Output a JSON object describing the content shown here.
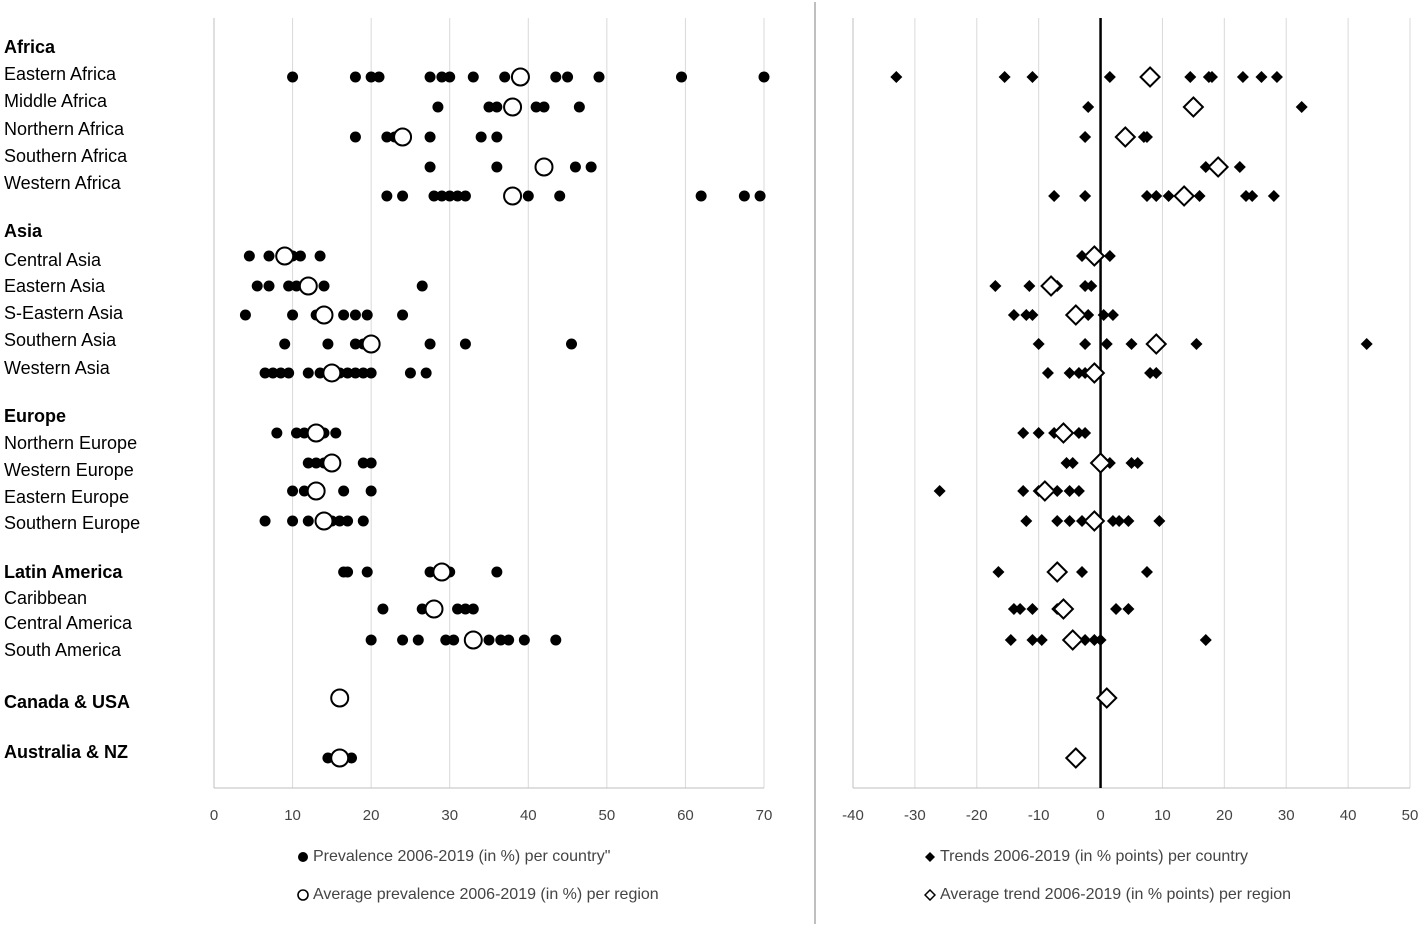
{
  "chart_data": [
    {
      "type": "scatter",
      "xlim": [
        0,
        70
      ],
      "xticks": [
        0,
        10,
        20,
        30,
        40,
        50,
        60,
        70
      ],
      "grid": true,
      "series": [
        {
          "name": "Prevalence 2006-2019  (in %) per country\"",
          "marker": "filled-circle"
        },
        {
          "name": "Average prevalence 2006-2019 (in %) per region",
          "marker": "open-circle"
        }
      ],
      "rows": [
        {
          "label": "Africa",
          "bold": true,
          "values": [],
          "avg": null
        },
        {
          "label": "Eastern Africa",
          "values": [
            10,
            18,
            20,
            21,
            27.5,
            29,
            30,
            33,
            37,
            39,
            43.5,
            45,
            49,
            59.5,
            70
          ],
          "avg": 39
        },
        {
          "label": "Middle Africa",
          "values": [
            28.5,
            35,
            36,
            41,
            42,
            46.5
          ],
          "avg": 38
        },
        {
          "label": "Northern Africa",
          "values": [
            18,
            22,
            23,
            27.5,
            34,
            36
          ],
          "avg": 24
        },
        {
          "label": "Southern Africa",
          "values": [
            27.5,
            36,
            42,
            46,
            48
          ],
          "avg": 42
        },
        {
          "label": "Western Africa",
          "values": [
            22,
            24,
            28,
            29,
            30,
            31,
            32,
            40,
            44,
            62,
            67.5,
            69.5
          ],
          "avg": 38
        },
        {
          "label": "Asia",
          "bold": true,
          "values": [],
          "avg": null
        },
        {
          "label": "Central Asia",
          "values": [
            4.5,
            7,
            10,
            11,
            13.5
          ],
          "avg": 9
        },
        {
          "label": "Eastern Asia",
          "values": [
            5.5,
            7,
            9.5,
            10.5,
            14,
            26.5
          ],
          "avg": 12
        },
        {
          "label": "S-Eastern Asia",
          "values": [
            4,
            10,
            13,
            16.5,
            18,
            19.5,
            24
          ],
          "avg": 14
        },
        {
          "label": "Southern Asia",
          "values": [
            9,
            14.5,
            18,
            19,
            27.5,
            32,
            45.5
          ],
          "avg": 20
        },
        {
          "label": "Western Asia",
          "values": [
            6.5,
            7.5,
            8.5,
            9.5,
            12,
            13.5,
            16,
            17,
            18,
            19,
            20,
            25,
            27
          ],
          "avg": 15
        },
        {
          "label": "Europe",
          "bold": true,
          "values": [],
          "avg": null
        },
        {
          "label": "Northern Europe",
          "values": [
            8,
            10.5,
            11.5,
            14,
            15.5
          ],
          "avg": 13
        },
        {
          "label": "Western Europe",
          "values": [
            12,
            13,
            14,
            19,
            20
          ],
          "avg": 15
        },
        {
          "label": "Eastern Europe",
          "values": [
            10,
            11.5,
            16.5,
            20
          ],
          "avg": 13
        },
        {
          "label": "Southern Europe",
          "values": [
            6.5,
            10,
            12,
            15,
            16,
            17,
            19
          ],
          "avg": 14
        },
        {
          "label": "Latin America",
          "bold": true,
          "values": [
            16.5,
            17,
            19.5,
            27.5,
            30,
            36
          ],
          "avg": 29
        },
        {
          "label": "Caribbean",
          "values": [
            21.5,
            26.5,
            31,
            32,
            33
          ],
          "avg": 28
        },
        {
          "label": "Central America",
          "values": [],
          "avg": null
        },
        {
          "label": "South America",
          "values": [
            20,
            24,
            26,
            29.5,
            30.5,
            35,
            36.5,
            37.5,
            39.5,
            43.5
          ],
          "avg": 33
        },
        {
          "label": "Canada & USA",
          "bold": true,
          "values": [
            16
          ],
          "avg": 16
        },
        {
          "label": "Australia & NZ",
          "bold": true,
          "values": [
            14.5,
            17.5
          ],
          "avg": 16
        }
      ]
    },
    {
      "type": "scatter",
      "xlim": [
        -40,
        50
      ],
      "xticks": [
        -40,
        -30,
        -20,
        -10,
        0,
        10,
        20,
        30,
        40,
        50
      ],
      "grid": true,
      "zero_line": true,
      "series": [
        {
          "name": "Trends 2006-2019 (in % points) per country",
          "marker": "filled-diamond"
        },
        {
          "name": "Average trend 2006-2019 (in % points) per region",
          "marker": "open-diamond"
        }
      ],
      "rows": [
        {
          "label": "Africa",
          "values": [],
          "avg": null
        },
        {
          "label": "Eastern Africa",
          "values": [
            -33,
            -15.5,
            -11,
            1.5,
            14.5,
            17.5,
            18,
            23,
            26,
            28.5
          ],
          "avg": 8
        },
        {
          "label": "Middle Africa",
          "values": [
            -2,
            32.5
          ],
          "avg": 15
        },
        {
          "label": "Northern Africa",
          "values": [
            -2.5,
            7,
            7.5
          ],
          "avg": 4
        },
        {
          "label": "Southern Africa",
          "values": [
            17,
            22.5
          ],
          "avg": 19
        },
        {
          "label": "Western Africa",
          "values": [
            -7.5,
            -2.5,
            7.5,
            9,
            11,
            16,
            23.5,
            24.5,
            28
          ],
          "avg": 13.5
        },
        {
          "label": "Asia",
          "values": [],
          "avg": null
        },
        {
          "label": "Central Asia",
          "values": [
            -3,
            1.5
          ],
          "avg": -1
        },
        {
          "label": "Eastern Asia",
          "values": [
            -17,
            -11.5,
            -7,
            -2.5,
            -1.5
          ],
          "avg": -8
        },
        {
          "label": "S-Eastern Asia",
          "values": [
            -14,
            -12,
            -11,
            -2,
            0.5,
            2
          ],
          "avg": -4
        },
        {
          "label": "Southern Asia",
          "values": [
            -10,
            -2.5,
            1,
            5,
            15.5,
            43
          ],
          "avg": 9
        },
        {
          "label": "Western Asia",
          "values": [
            -8.5,
            -5,
            -3.5,
            -2.5,
            8,
            9
          ],
          "avg": -1
        },
        {
          "label": "Europe",
          "values": [],
          "avg": null
        },
        {
          "label": "Northern Europe",
          "values": [
            -12.5,
            -10,
            -7.5,
            -3.5,
            -2.5
          ],
          "avg": -6
        },
        {
          "label": "Western Europe",
          "values": [
            -5.5,
            -4.5,
            1.5,
            5,
            6
          ],
          "avg": 0
        },
        {
          "label": "Eastern Europe",
          "values": [
            -26,
            -12.5,
            -10,
            -7,
            -5,
            -3.5
          ],
          "avg": -9
        },
        {
          "label": "Southern Europe",
          "values": [
            -12,
            -7,
            -5,
            -3,
            2,
            3,
            4.5,
            9.5
          ],
          "avg": -1
        },
        {
          "label": "Latin America",
          "values": [
            -16.5,
            -3,
            7.5
          ],
          "avg": -7
        },
        {
          "label": "Caribbean",
          "values": [
            -14,
            -13,
            -11,
            -7,
            2.5,
            4.5
          ],
          "avg": -6
        },
        {
          "label": "Central America",
          "values": [],
          "avg": null
        },
        {
          "label": "South America",
          "values": [
            -14.5,
            -11,
            -9.5,
            -2.5,
            -1,
            0,
            17
          ],
          "avg": -4.5
        },
        {
          "label": "Canada & USA",
          "values": [],
          "avg": 1
        },
        {
          "label": "Australia & NZ",
          "values": [],
          "avg": -4
        }
      ]
    }
  ],
  "colors": {
    "marker": "#000000",
    "grid": "#d9d9d9",
    "axis": "#bfbfbf",
    "tick_text": "#444444",
    "open_fill": "#ffffff"
  }
}
